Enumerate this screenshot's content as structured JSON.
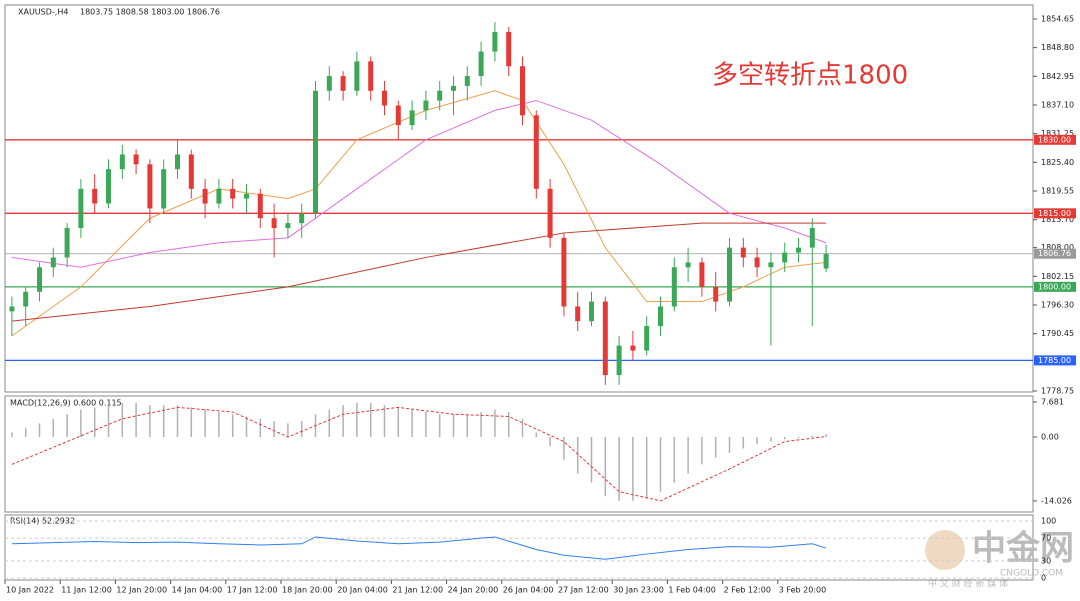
{
  "chart_data": {
    "type": "candlestick",
    "header": {
      "symbol": "XAUUSD-,H4",
      "quote": "1803.75 1808.58 1803.00 1806.76"
    },
    "annotation": "多空转折点1800",
    "watermark": {
      "title": "中金网",
      "site": "CNGOLD.COM",
      "slogan": "中 文 财 经 新 媒 体"
    },
    "up_color": "#3aa856",
    "down_color": "#e53935",
    "ylim": [
      1778.55,
      1857.5
    ],
    "yticks": [
      {
        "value": 1854.65,
        "label": "1854.65"
      },
      {
        "value": 1848.8,
        "label": "1848.80"
      },
      {
        "value": 1842.95,
        "label": "1842.95"
      },
      {
        "value": 1837.1,
        "label": "1837.10"
      },
      {
        "value": 1831.25,
        "label": "1831.25"
      },
      {
        "value": 1825.4,
        "label": "1825.40"
      },
      {
        "value": 1819.55,
        "label": "1819.55"
      },
      {
        "value": 1813.7,
        "label": "1813.70"
      },
      {
        "value": 1808,
        "label": "1808.00"
      },
      {
        "value": 1802.15,
        "label": "1802.15"
      },
      {
        "value": 1796.3,
        "label": "1796.30"
      },
      {
        "value": 1790.45,
        "label": "1790.45"
      },
      {
        "value": 1778.75,
        "label": "1778.75"
      }
    ],
    "levels": [
      {
        "value": 1830,
        "label": "1830.00",
        "color": "#e53935"
      },
      {
        "value": 1815,
        "label": "1815.00",
        "color": "#e53935"
      },
      {
        "value": 1800,
        "label": "1800.00",
        "color": "#3aa856"
      },
      {
        "value": 1785,
        "label": "1785.00",
        "color": "#2962ff"
      },
      {
        "value": 1806.76,
        "label": "1806.76",
        "color": "#999999"
      }
    ],
    "xticks": [
      {
        "value": 0,
        "label": "10 Jan 2022"
      },
      {
        "value": 4,
        "label": "11 Jan 12:00"
      },
      {
        "value": 8,
        "label": "12 Jan 20:00"
      },
      {
        "value": 12,
        "label": "14 Jan 04:00"
      },
      {
        "value": 16,
        "label": "17 Jan 12:00"
      },
      {
        "value": 20,
        "label": "18 Jan 20:00"
      },
      {
        "value": 24,
        "label": "20 Jan 04:00"
      },
      {
        "value": 28,
        "label": "21 Jan 12:00"
      },
      {
        "value": 32,
        "label": "24 Jan 20:00"
      },
      {
        "value": 36,
        "label": "26 Jan 04:00"
      },
      {
        "value": 40,
        "label": "27 Jan 12:00"
      },
      {
        "value": 44,
        "label": "30 Jan 23:00"
      },
      {
        "value": 48,
        "label": "1 Feb 04:00"
      },
      {
        "value": 52,
        "label": "2 Feb 12:00"
      },
      {
        "value": 56,
        "label": "3 Feb 20:00"
      }
    ],
    "open": [
      1795,
      1796,
      1799,
      1804,
      1806,
      1812,
      1820,
      1817,
      1824,
      1827,
      1825,
      1816,
      1824,
      1827,
      1820,
      1817,
      1820,
      1818,
      1819,
      1814,
      1812,
      1813,
      1815,
      1840,
      1843,
      1840,
      1846,
      1840,
      1837,
      1833,
      1836,
      1838,
      1840,
      1841,
      1843,
      1848,
      1852,
      1845,
      1835,
      1820,
      1810,
      1796,
      1793,
      1797,
      1782,
      1788,
      1787,
      1792,
      1796,
      1804,
      1805,
      1800,
      1797,
      1808,
      1806,
      1804,
      1805,
      1807,
      1808,
      1803.75
    ],
    "high": [
      1798,
      1800,
      1805,
      1808,
      1813,
      1822,
      1823,
      1826,
      1829,
      1828,
      1826,
      1826,
      1830,
      1828,
      1822,
      1822,
      1822,
      1821,
      1820,
      1817,
      1815,
      1817,
      1842,
      1845,
      1844,
      1848,
      1847,
      1842,
      1838,
      1838,
      1840,
      1842,
      1843,
      1845,
      1850,
      1854,
      1853,
      1847,
      1836,
      1822,
      1811,
      1799,
      1799,
      1798,
      1790,
      1791,
      1794,
      1798,
      1806,
      1808,
      1806,
      1803,
      1810,
      1810,
      1808,
      1807,
      1809,
      1810,
      1814,
      1808.58
    ],
    "low": [
      1790,
      1792,
      1797,
      1802,
      1804,
      1810,
      1815,
      1816,
      1822,
      1823,
      1813,
      1815,
      1822,
      1818,
      1814,
      1816,
      1816,
      1815,
      1812,
      1806,
      1810,
      1810,
      1814,
      1838,
      1838,
      1839,
      1838,
      1835,
      1830,
      1832,
      1834,
      1836,
      1835,
      1838,
      1841,
      1846,
      1843,
      1833,
      1818,
      1808,
      1794,
      1791,
      1792,
      1780,
      1780,
      1785,
      1786,
      1790,
      1795,
      1801,
      1798,
      1795,
      1796,
      1804,
      1802,
      1788,
      1803,
      1805,
      1792,
      1803
    ],
    "close": [
      1796,
      1799,
      1804,
      1806,
      1812,
      1820,
      1817,
      1824,
      1827,
      1825,
      1816,
      1824,
      1827,
      1820,
      1817,
      1820,
      1818,
      1819,
      1814,
      1812,
      1813,
      1815,
      1840,
      1843,
      1840,
      1846,
      1840,
      1837,
      1833,
      1836,
      1838,
      1840,
      1841,
      1843,
      1848,
      1852,
      1845,
      1835,
      1820,
      1810,
      1796,
      1793,
      1797,
      1782,
      1788,
      1787,
      1792,
      1796,
      1804,
      1805,
      1800,
      1797,
      1808,
      1806,
      1804,
      1805,
      1807,
      1808,
      1812,
      1806.76
    ],
    "averages": [
      {
        "color": "#f0a050",
        "x": [
          0,
          5,
          10,
          15,
          20,
          22,
          25,
          30,
          35,
          37,
          40,
          43,
          46,
          50,
          53,
          56,
          59
        ],
        "values": [
          1790,
          1800,
          1814,
          1820,
          1818,
          1820,
          1830,
          1836,
          1840,
          1838,
          1825,
          1808,
          1797,
          1797,
          1800,
          1804,
          1805
        ]
      },
      {
        "color": "#e070e0",
        "x": [
          0,
          5,
          10,
          15,
          20,
          25,
          30,
          35,
          38,
          42,
          47,
          52,
          56,
          59
        ],
        "values": [
          1806,
          1804,
          1807,
          1809,
          1810,
          1820,
          1830,
          1836,
          1838,
          1834,
          1825,
          1815,
          1812,
          1809
        ]
      },
      {
        "color": "#c0392b",
        "x": [
          0,
          10,
          20,
          30,
          40,
          50,
          59
        ],
        "values": [
          1793,
          1796,
          1800,
          1806,
          1811,
          1813,
          1813
        ]
      }
    ],
    "macd": {
      "label": "MACD(12,26,9) 0.600 0.115",
      "ylim": [
        -16.45,
        9
      ],
      "yticks": [
        7.681,
        {
          "value": 0,
          "label": "0.00"
        },
        -14.026
      ],
      "histogram": [
        1,
        2,
        3,
        4,
        5,
        6,
        6.5,
        7,
        7.5,
        7.5,
        7,
        7,
        7,
        6.5,
        6,
        5.5,
        5,
        4.5,
        4,
        3.5,
        3,
        3.5,
        5,
        6,
        7,
        7.5,
        7.5,
        7,
        6.5,
        6,
        5.5,
        5,
        5,
        5,
        5.5,
        6,
        5.5,
        4,
        1,
        -2,
        -5,
        -8,
        -10,
        -13,
        -14,
        -14,
        -13.5,
        -12,
        -10,
        -8,
        -6,
        -4.5,
        -3.5,
        -2.5,
        -1.5,
        -1,
        -0.5,
        -0.2,
        0.3,
        0.6
      ],
      "signal": {
        "color": "#e53935",
        "x": [
          0,
          4,
          8,
          12,
          16,
          20,
          24,
          28,
          32,
          36,
          40,
          44,
          47,
          52,
          56,
          59
        ],
        "values": [
          -6,
          -1,
          4,
          6.5,
          5.5,
          0,
          5,
          6.5,
          5,
          4.5,
          -1,
          -12,
          -14,
          -7,
          -1,
          0.1
        ]
      }
    },
    "rsi": {
      "label": "RSI(14) 52.2932",
      "ylim": [
        0,
        100
      ],
      "yticks": [
        100,
        70,
        30,
        0
      ],
      "color": "#2f80ed",
      "x": [
        0,
        3,
        6,
        9,
        12,
        15,
        18,
        21,
        22,
        25,
        28,
        31,
        34,
        35,
        38,
        40,
        43,
        46,
        49,
        52,
        55,
        58,
        59
      ],
      "values": [
        60,
        62,
        64,
        62,
        63,
        60,
        58,
        60,
        72,
        65,
        60,
        63,
        70,
        72,
        50,
        40,
        33,
        42,
        50,
        55,
        54,
        60,
        52.2932
      ]
    }
  }
}
